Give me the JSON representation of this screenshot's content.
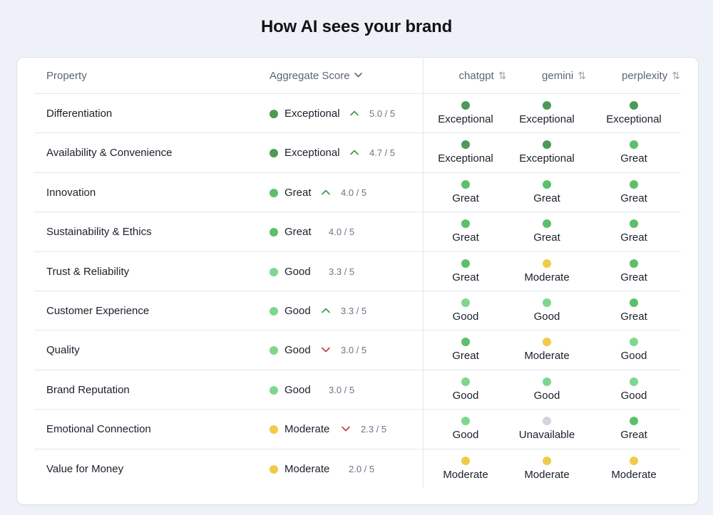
{
  "title": "How AI sees your brand",
  "headers": {
    "property": "Property",
    "aggregate": "Aggregate Score",
    "models": [
      "chatgpt",
      "gemini",
      "perplexity"
    ]
  },
  "colors": {
    "Exceptional": "#4c9a57",
    "Great": "#5cc06a",
    "Good": "#7fd68f",
    "Moderate": "#f0cb4a",
    "Unavailable": "#d2d5db",
    "trend_up": "#3a9a4c",
    "trend_down": "#c73b3b"
  },
  "rows": [
    {
      "property": "Differentiation",
      "aggregate": "Exceptional",
      "trend": "up",
      "score": "5.0 / 5",
      "models": [
        "Exceptional",
        "Exceptional",
        "Exceptional"
      ]
    },
    {
      "property": "Availability & Convenience",
      "aggregate": "Exceptional",
      "trend": "up",
      "score": "4.7 / 5",
      "models": [
        "Exceptional",
        "Exceptional",
        "Great"
      ]
    },
    {
      "property": "Innovation",
      "aggregate": "Great",
      "trend": "up",
      "score": "4.0 / 5",
      "models": [
        "Great",
        "Great",
        "Great"
      ]
    },
    {
      "property": "Sustainability & Ethics",
      "aggregate": "Great",
      "trend": "none",
      "score": "4.0 / 5",
      "models": [
        "Great",
        "Great",
        "Great"
      ]
    },
    {
      "property": "Trust & Reliability",
      "aggregate": "Good",
      "trend": "none",
      "score": "3.3 / 5",
      "models": [
        "Great",
        "Moderate",
        "Great"
      ]
    },
    {
      "property": "Customer Experience",
      "aggregate": "Good",
      "trend": "up",
      "score": "3.3 / 5",
      "models": [
        "Good",
        "Good",
        "Great"
      ]
    },
    {
      "property": "Quality",
      "aggregate": "Good",
      "trend": "down",
      "score": "3.0 / 5",
      "models": [
        "Great",
        "Moderate",
        "Good"
      ]
    },
    {
      "property": "Brand Reputation",
      "aggregate": "Good",
      "trend": "none",
      "score": "3.0 / 5",
      "models": [
        "Good",
        "Good",
        "Good"
      ]
    },
    {
      "property": "Emotional Connection",
      "aggregate": "Moderate",
      "trend": "down",
      "score": "2.3 / 5",
      "models": [
        "Good",
        "Unavailable",
        "Great"
      ]
    },
    {
      "property": "Value for Money",
      "aggregate": "Moderate",
      "trend": "none",
      "score": "2.0 / 5",
      "models": [
        "Moderate",
        "Moderate",
        "Moderate"
      ]
    }
  ]
}
